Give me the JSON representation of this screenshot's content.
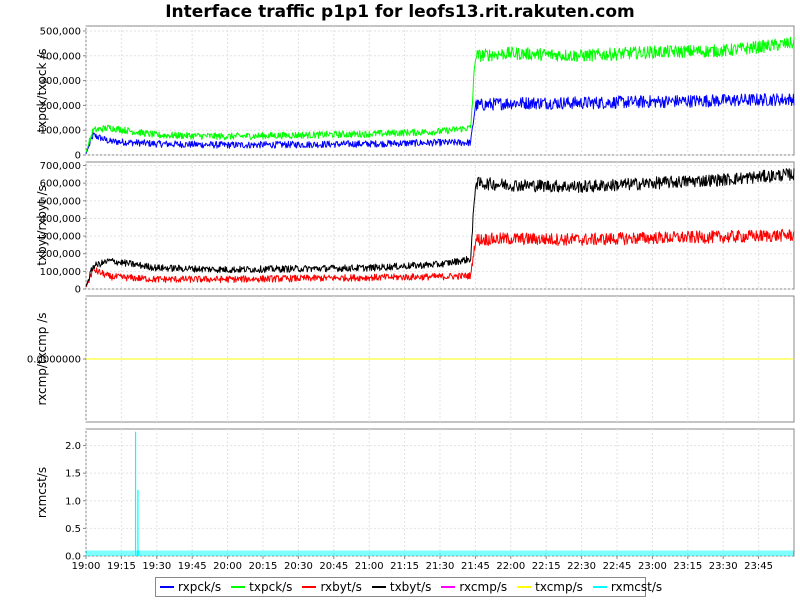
{
  "chart_data": {
    "type": "line",
    "title": "Interface traffic p1p1 for leofs13.rit.rakuten.com",
    "x_ticks": [
      "19:00",
      "19:15",
      "19:30",
      "19:45",
      "20:00",
      "20:15",
      "20:30",
      "20:45",
      "21:00",
      "21:15",
      "21:30",
      "21:45",
      "22:00",
      "22:15",
      "22:30",
      "22:45",
      "23:00",
      "23:15",
      "23:30",
      "23:45"
    ],
    "legend": [
      {
        "name": "rxpck/s",
        "color": "#0000ff"
      },
      {
        "name": "txpck/s",
        "color": "#00ff00"
      },
      {
        "name": "rxbyt/s",
        "color": "#ff0000"
      },
      {
        "name": "txbyt/s",
        "color": "#000000"
      },
      {
        "name": "rxcmp/s",
        "color": "#ff00ff"
      },
      {
        "name": "txcmp/s",
        "color": "#ffff00"
      },
      {
        "name": "rxmcst/s",
        "color": "#00ffff"
      }
    ],
    "panels": [
      {
        "ylabel": "txpck/txpck /s",
        "ylim": [
          0,
          520000
        ],
        "yticks": [
          "0",
          "100,000",
          "200,000",
          "300,000",
          "400,000",
          "500,000"
        ],
        "ytick_values": [
          0,
          100000,
          200000,
          300000,
          400000,
          500000
        ],
        "series": [
          {
            "name": "rxpck/s",
            "color": "#0000ff",
            "x": [
              "19:00",
              "19:03",
              "19:10",
              "19:30",
              "20:00",
              "20:30",
              "21:00",
              "21:30",
              "21:43",
              "21:45",
              "22:00",
              "22:30",
              "23:00",
              "23:30",
              "23:59"
            ],
            "y": [
              5000,
              80000,
              55000,
              45000,
              40000,
              42000,
              45000,
              50000,
              50000,
              200000,
              210000,
              210000,
              215000,
              220000,
              225000
            ]
          },
          {
            "name": "txpck/s",
            "color": "#00ff00",
            "x": [
              "19:00",
              "19:03",
              "19:10",
              "19:30",
              "20:00",
              "20:30",
              "21:00",
              "21:30",
              "21:43",
              "21:45",
              "22:00",
              "22:30",
              "23:00",
              "23:30",
              "23:59"
            ],
            "y": [
              10000,
              100000,
              110000,
              80000,
              75000,
              80000,
              85000,
              95000,
              110000,
              400000,
              410000,
              400000,
              415000,
              420000,
              450000
            ]
          }
        ]
      },
      {
        "ylabel": "txbyt/rxbyt /s",
        "ylim": [
          0,
          720000
        ],
        "yticks": [
          "0",
          "100,000",
          "200,000",
          "300,000",
          "400,000",
          "500,000",
          "600,000",
          "700,000"
        ],
        "ytick_values": [
          0,
          100000,
          200000,
          300000,
          400000,
          500000,
          600000,
          700000
        ],
        "series": [
          {
            "name": "rxbyt/s",
            "color": "#ff0000",
            "x": [
              "19:00",
              "19:03",
              "19:10",
              "19:30",
              "20:00",
              "20:30",
              "21:00",
              "21:30",
              "21:43",
              "21:45",
              "22:00",
              "22:30",
              "23:00",
              "23:30",
              "23:59"
            ],
            "y": [
              10000,
              110000,
              70000,
              55000,
              55000,
              60000,
              65000,
              70000,
              75000,
              280000,
              285000,
              280000,
              290000,
              295000,
              305000
            ]
          },
          {
            "name": "txbyt/s",
            "color": "#000000",
            "x": [
              "19:00",
              "19:03",
              "19:10",
              "19:30",
              "20:00",
              "20:30",
              "21:00",
              "21:30",
              "21:43",
              "21:45",
              "22:00",
              "22:30",
              "23:00",
              "23:30",
              "23:59"
            ],
            "y": [
              15000,
              130000,
              160000,
              120000,
              110000,
              115000,
              120000,
              140000,
              170000,
              600000,
              590000,
              580000,
              600000,
              620000,
              650000
            ]
          }
        ]
      },
      {
        "ylabel": "rxcmp/txcmp /s",
        "ylim": [
          -1,
          1
        ],
        "yticks": [
          "0.0000000"
        ],
        "ytick_values": [
          0
        ],
        "series": [
          {
            "name": "rxcmp/s",
            "color": "#ff00ff",
            "x": [
              "19:00",
              "23:59"
            ],
            "y": [
              0,
              0
            ]
          },
          {
            "name": "txcmp/s",
            "color": "#ffff00",
            "x": [
              "19:00",
              "23:59"
            ],
            "y": [
              0,
              0
            ]
          }
        ]
      },
      {
        "ylabel": "rxmcst/s",
        "ylim": [
          0,
          2.3
        ],
        "yticks": [
          "0.0",
          "0.5",
          "1.0",
          "1.5",
          "2.0"
        ],
        "ytick_values": [
          0,
          0.5,
          1.0,
          1.5,
          2.0
        ],
        "series": [
          {
            "name": "rxmcst/s",
            "color": "#00ffff",
            "baseline": 0.1,
            "spikes": [
              {
                "x": "19:21",
                "y": 2.25
              },
              {
                "x": "19:22",
                "y": 1.2
              }
            ]
          }
        ]
      }
    ]
  }
}
